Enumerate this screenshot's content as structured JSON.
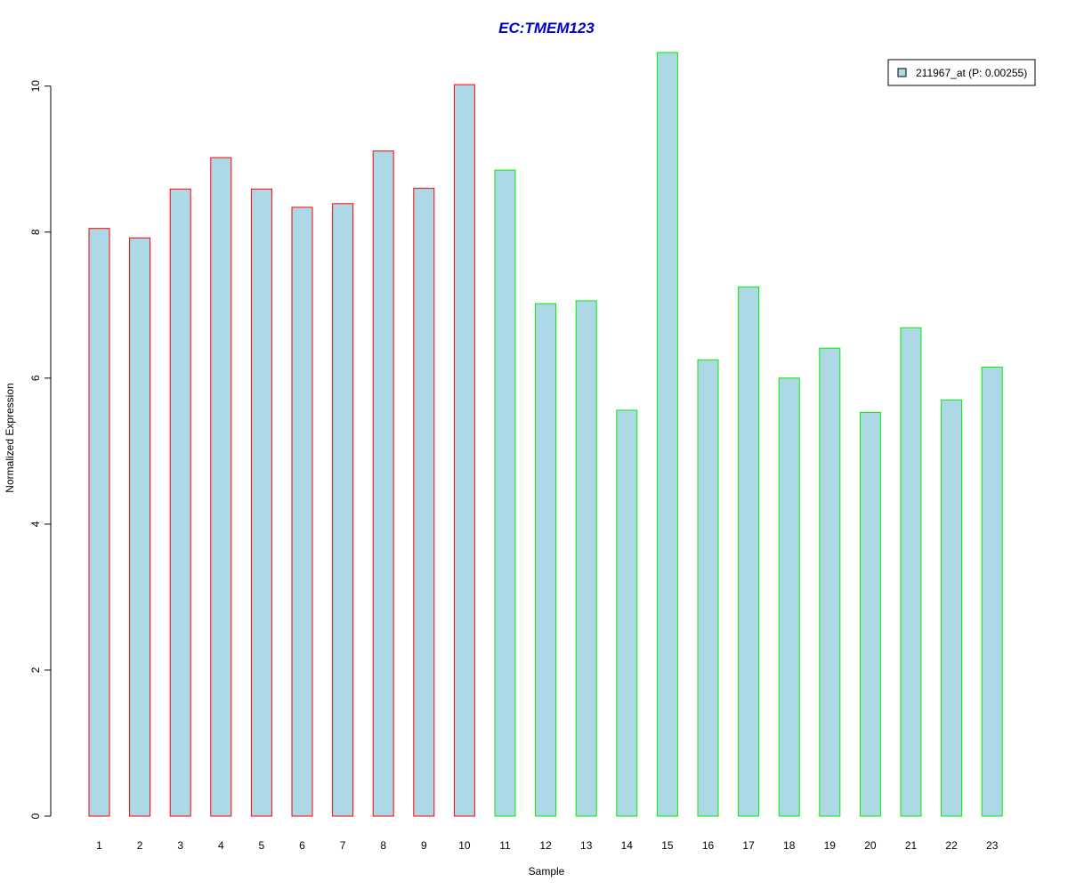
{
  "chart_data": {
    "type": "bar",
    "title": "EC:TMEM123",
    "xlabel": "Sample",
    "ylabel": "Normalized Expression",
    "categories": [
      "1",
      "2",
      "3",
      "4",
      "5",
      "6",
      "7",
      "8",
      "9",
      "10",
      "11",
      "12",
      "13",
      "14",
      "15",
      "16",
      "17",
      "18",
      "19",
      "20",
      "21",
      "22",
      "23"
    ],
    "values": [
      8.05,
      7.92,
      8.59,
      9.02,
      8.59,
      8.34,
      8.39,
      9.11,
      8.6,
      10.02,
      8.85,
      7.02,
      7.06,
      5.56,
      10.46,
      6.25,
      7.25,
      6.0,
      6.41,
      5.53,
      6.69,
      5.7,
      6.15
    ],
    "groups": [
      "a",
      "a",
      "a",
      "a",
      "a",
      "a",
      "a",
      "a",
      "a",
      "a",
      "b",
      "b",
      "b",
      "b",
      "b",
      "b",
      "b",
      "b",
      "b",
      "b",
      "b",
      "b",
      "b"
    ],
    "yticks": [
      0,
      2,
      4,
      6,
      8,
      10
    ],
    "ylim": [
      0,
      10.46
    ],
    "grid": false,
    "legend": {
      "label": "211967_at (P: 0.00255)",
      "position": "top-right"
    },
    "colors": {
      "fill": "#add8e6",
      "border_group_a": "#ff0000",
      "border_group_b": "#00ee00",
      "title": "#0000cc"
    }
  }
}
